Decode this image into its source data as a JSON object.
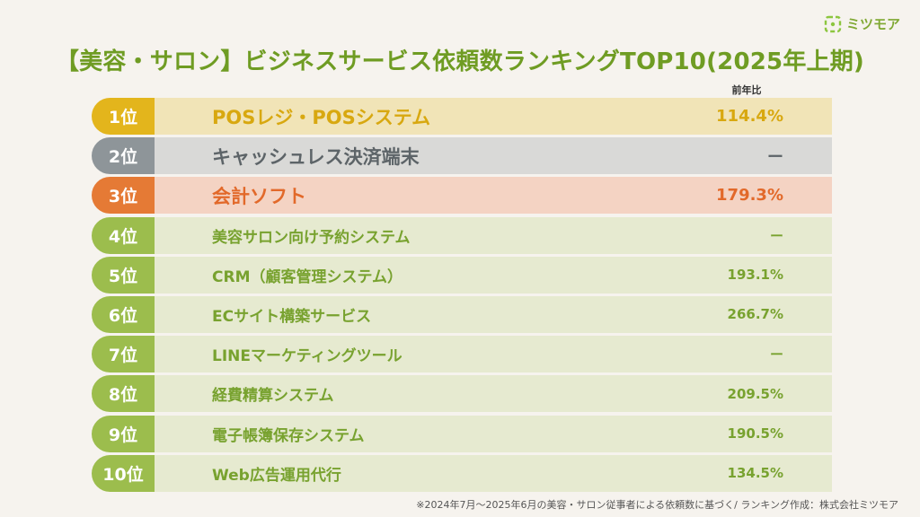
{
  "logo": {
    "text": "ミツモア",
    "icon": "mitsumore-logo-icon"
  },
  "title": "【美容・サロン】ビジネスサービス依頼数ランキングTOP10(2025年上期)",
  "column_header": "前年比",
  "colors": {
    "green": "#9cbd4d",
    "rank1": "#e3b51c",
    "rank2": "#8e9599",
    "rank3": "#e57a35"
  },
  "rows": [
    {
      "rank": "1位",
      "name": "POSレジ・POSシステム",
      "yoy": "114.4%"
    },
    {
      "rank": "2位",
      "name": "キャッシュレス決済端末",
      "yoy": "ー"
    },
    {
      "rank": "3位",
      "name": "会計ソフト",
      "yoy": "179.3%"
    },
    {
      "rank": "4位",
      "name": "美容サロン向け予約システム",
      "yoy": "ー"
    },
    {
      "rank": "5位",
      "name": "CRM（顧客管理システム）",
      "yoy": "193.1%"
    },
    {
      "rank": "6位",
      "name": "ECサイト構築サービス",
      "yoy": "266.7%"
    },
    {
      "rank": "7位",
      "name": "LINEマーケティングツール",
      "yoy": "ー"
    },
    {
      "rank": "8位",
      "name": "経費精算システム",
      "yoy": "209.5%"
    },
    {
      "rank": "9位",
      "name": "電子帳簿保存システム",
      "yoy": "190.5%"
    },
    {
      "rank": "10位",
      "name": "Web広告運用代行",
      "yoy": "134.5%"
    }
  ],
  "footer": "※2024年7月〜2025年6月の美容・サロン従事者による依頼数に基づく/ ランキング作成：株式会社ミツモア"
}
